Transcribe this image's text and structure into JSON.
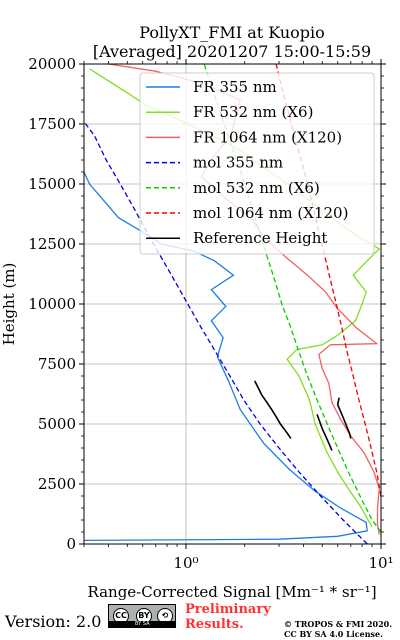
{
  "chart_data": {
    "type": "line",
    "title_line1": "PollyXT_FMI at Kuopio",
    "title_line2": "[Averaged] 20201207 15:00-15:59",
    "xlabel": "Range-Corrected Signal [Mm⁻¹ * sr⁻¹]",
    "ylabel": "Height (m)",
    "xscale": "log",
    "xlim": [
      0.3,
      10
    ],
    "ylim": [
      0,
      20000
    ],
    "x_ticks": [
      {
        "value": 1,
        "label": "10⁰"
      },
      {
        "value": 10,
        "label": "10¹"
      }
    ],
    "y_ticks": [
      0,
      2500,
      5000,
      7500,
      10000,
      12500,
      15000,
      17500,
      20000
    ],
    "grid": true,
    "legend_position": "top-right",
    "series": [
      {
        "name": "FR 355 nm",
        "color": "#1f7fe0",
        "style": "solid",
        "points": [
          [
            0.3,
            150
          ],
          [
            3,
            200
          ],
          [
            6,
            320
          ],
          [
            8.5,
            550
          ],
          [
            8.4,
            900
          ],
          [
            6.2,
            1500
          ],
          [
            4.6,
            2200
          ],
          [
            3.4,
            3100
          ],
          [
            2.5,
            4200
          ],
          [
            1.9,
            5600
          ],
          [
            1.65,
            6800
          ],
          [
            1.45,
            7800
          ],
          [
            1.55,
            8600
          ],
          [
            1.35,
            9300
          ],
          [
            1.6,
            9900
          ],
          [
            1.35,
            10600
          ],
          [
            1.75,
            11200
          ],
          [
            1.4,
            11800
          ],
          [
            1.1,
            12200
          ],
          [
            0.75,
            12500
          ],
          [
            0.6,
            13000
          ],
          [
            0.45,
            13600
          ],
          [
            0.38,
            14300
          ],
          [
            0.32,
            15000
          ],
          [
            0.3,
            15500
          ]
        ]
      },
      {
        "name": "FR 532 nm (X6)",
        "color": "#7fe020",
        "style": "solid",
        "points": [
          [
            9,
            700
          ],
          [
            8.6,
            1000
          ],
          [
            7.8,
            1600
          ],
          [
            6.8,
            2300
          ],
          [
            6,
            3000
          ],
          [
            5.3,
            3800
          ],
          [
            4.6,
            5000
          ],
          [
            4.3,
            6000
          ],
          [
            3.8,
            7000
          ],
          [
            3.3,
            7700
          ],
          [
            3.7,
            8100
          ],
          [
            5,
            8300
          ],
          [
            6,
            8700
          ],
          [
            7.4,
            9300
          ],
          [
            8,
            10000
          ],
          [
            8.4,
            10500
          ],
          [
            7.2,
            11200
          ],
          [
            8.5,
            11800
          ],
          [
            9.8,
            12300
          ],
          [
            8,
            12700
          ],
          [
            6.5,
            13200
          ],
          [
            5,
            13900
          ],
          [
            3.6,
            14800
          ],
          [
            2.6,
            15600
          ],
          [
            1.9,
            16400
          ],
          [
            1.3,
            17100
          ],
          [
            0.9,
            17700
          ],
          [
            0.62,
            18300
          ],
          [
            0.5,
            18800
          ],
          [
            0.4,
            19300
          ],
          [
            0.32,
            19800
          ]
        ]
      },
      {
        "name": "FR 1064 nm (X120)",
        "color": "#f06060",
        "style": "solid",
        "points": [
          [
            9.8,
            400
          ],
          [
            9.6,
            800
          ],
          [
            9.6,
            1500
          ],
          [
            9.8,
            2300
          ],
          [
            9.2,
            3000
          ],
          [
            8.2,
            3800
          ],
          [
            7,
            4500
          ],
          [
            6.2,
            5200
          ],
          [
            5.6,
            5900
          ],
          [
            5.4,
            6700
          ],
          [
            5,
            7300
          ],
          [
            4.8,
            7900
          ],
          [
            5.5,
            8300
          ],
          [
            9.5,
            8350
          ],
          [
            7.5,
            9000
          ],
          [
            6,
            9800
          ],
          [
            5.2,
            10500
          ],
          [
            4.2,
            11200
          ],
          [
            3.2,
            12000
          ],
          [
            2.5,
            12800
          ],
          [
            2.2,
            13500
          ],
          [
            1.6,
            14400
          ],
          [
            1.2,
            15300
          ],
          [
            1.4,
            16200
          ],
          [
            1.7,
            17000
          ],
          [
            1.8,
            17800
          ],
          [
            1.9,
            18500
          ],
          [
            1.2,
            19200
          ],
          [
            0.7,
            19700
          ],
          [
            0.4,
            20000
          ]
        ]
      },
      {
        "name": "mol 355 nm",
        "color": "#0000dd",
        "style": "dashed",
        "points": [
          [
            8.5,
            0
          ],
          [
            6.4,
            1000
          ],
          [
            4.9,
            2000
          ],
          [
            3.8,
            3000
          ],
          [
            3.0,
            4000
          ],
          [
            2.4,
            5000
          ],
          [
            1.98,
            6000
          ],
          [
            1.68,
            7000
          ],
          [
            1.42,
            8000
          ],
          [
            1.2,
            9000
          ],
          [
            1.02,
            10000
          ],
          [
            0.87,
            11000
          ],
          [
            0.74,
            12000
          ],
          [
            0.63,
            13000
          ],
          [
            0.54,
            14000
          ],
          [
            0.46,
            15000
          ],
          [
            0.39,
            16000
          ],
          [
            0.34,
            17000
          ],
          [
            0.3,
            17600
          ]
        ]
      },
      {
        "name": "mol 532 nm (X6)",
        "color": "#00cc00",
        "style": "dashed",
        "points": [
          [
            10,
            500
          ],
          [
            9.0,
            1000
          ],
          [
            7.8,
            2000
          ],
          [
            6.8,
            3000
          ],
          [
            6.0,
            4000
          ],
          [
            5.3,
            5000
          ],
          [
            4.7,
            6000
          ],
          [
            4.2,
            7000
          ],
          [
            3.8,
            8000
          ],
          [
            3.45,
            9000
          ],
          [
            3.1,
            10000
          ],
          [
            2.85,
            11000
          ],
          [
            2.6,
            12000
          ],
          [
            2.38,
            13000
          ],
          [
            2.18,
            14000
          ],
          [
            2.0,
            15000
          ],
          [
            1.82,
            16000
          ],
          [
            1.65,
            17000
          ],
          [
            1.5,
            18000
          ],
          [
            1.36,
            19000
          ],
          [
            1.24,
            20000
          ]
        ]
      },
      {
        "name": "mol 1064 nm (X120)",
        "color": "#ee0000",
        "style": "dashed",
        "points": [
          [
            10,
            2000
          ],
          [
            9.5,
            3000
          ],
          [
            8.9,
            4000
          ],
          [
            8.3,
            5000
          ],
          [
            7.7,
            6000
          ],
          [
            7.2,
            7000
          ],
          [
            6.7,
            8000
          ],
          [
            6.3,
            9000
          ],
          [
            5.9,
            10000
          ],
          [
            5.5,
            11000
          ],
          [
            5.15,
            12000
          ],
          [
            4.8,
            13000
          ],
          [
            4.5,
            14000
          ],
          [
            4.2,
            15000
          ],
          [
            3.9,
            16000
          ],
          [
            3.6,
            17000
          ],
          [
            3.35,
            18000
          ],
          [
            3.1,
            19000
          ],
          [
            2.9,
            20000
          ]
        ]
      },
      {
        "name": "Reference Height",
        "color": "#000000",
        "style": "solid",
        "points": [
          [
            2.25,
            6800
          ],
          [
            2.35,
            6500
          ],
          [
            2.45,
            6200
          ],
          [
            2.6,
            5900
          ],
          [
            2.75,
            5600
          ],
          [
            2.9,
            5300
          ],
          [
            3.05,
            5000
          ],
          [
            3.25,
            4700
          ],
          [
            3.45,
            4400
          ]
        ]
      },
      {
        "name": "Reference Height",
        "color": "#000000",
        "style": "solid",
        "points": [
          [
            4.7,
            5400
          ],
          [
            4.85,
            5100
          ],
          [
            5.0,
            4800
          ],
          [
            5.2,
            4500
          ],
          [
            5.4,
            4200
          ],
          [
            5.6,
            3900
          ]
        ]
      },
      {
        "name": "Reference Height",
        "color": "#000000",
        "style": "solid",
        "points": [
          [
            6.1,
            6100
          ],
          [
            6.0,
            5800
          ],
          [
            6.3,
            5400
          ],
          [
            6.6,
            5000
          ],
          [
            6.9,
            4600
          ],
          [
            7.0,
            4400
          ]
        ]
      }
    ],
    "legend": [
      {
        "label": "FR 355 nm",
        "color": "#1f7fe0",
        "style": "solid"
      },
      {
        "label": "FR 532 nm (X6)",
        "color": "#7fe020",
        "style": "solid"
      },
      {
        "label": "FR 1064 nm (X120)",
        "color": "#f06060",
        "style": "solid"
      },
      {
        "label": "mol 355 nm",
        "color": "#0000dd",
        "style": "dashed"
      },
      {
        "label": "mol 532 nm (X6)",
        "color": "#00cc00",
        "style": "dashed"
      },
      {
        "label": "mol 1064 nm (X120)",
        "color": "#ee0000",
        "style": "dashed"
      },
      {
        "label": "Reference Height",
        "color": "#000000",
        "style": "solid"
      }
    ]
  },
  "footer": {
    "version": "Version: 2.0",
    "license_badge": {
      "top": "CC",
      "mid": "BY",
      "strip": "BY    SA"
    },
    "preliminary_line1": "Preliminary",
    "preliminary_line2": "Results.",
    "copyright_line1": "© TROPOS & FMI 2020.",
    "copyright_line2": "CC BY SA 4.0 License."
  }
}
